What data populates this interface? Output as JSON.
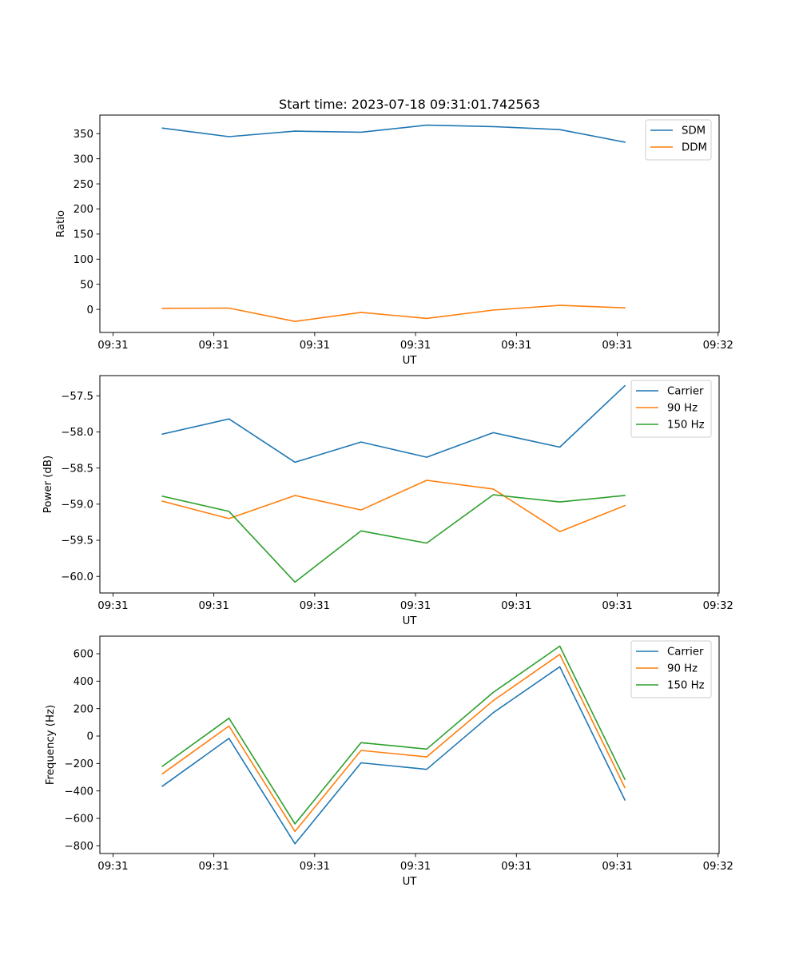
{
  "figure": {
    "title": "Start time: 2023-07-18 09:31:01.742563"
  },
  "chart_data": [
    {
      "type": "line",
      "title": "Start time: 2023-07-18 09:31:01.742563",
      "xlabel": "UT",
      "ylabel": "Ratio",
      "x_unit": "seconds after 09:31:00",
      "x": [
        4.9,
        11.5,
        18.05,
        24.6,
        31.1,
        37.7,
        44.3,
        50.75
      ],
      "xlim": [
        -1.3,
        60.1
      ],
      "xticks": [
        0,
        10,
        20,
        30,
        40,
        50,
        60
      ],
      "xtick_labels": [
        "09:31",
        "09:31",
        "09:31",
        "09:31",
        "09:31",
        "09:31",
        "09:32"
      ],
      "ylim": [
        -46,
        387
      ],
      "yticks": [
        0,
        50,
        100,
        150,
        200,
        250,
        300,
        350
      ],
      "ytick_labels": [
        "0",
        "50",
        "100",
        "150",
        "200",
        "250",
        "300",
        "350"
      ],
      "grid": false,
      "legend_position": "top-right",
      "series": [
        {
          "name": "SDM",
          "color": "#1f77b4",
          "values": [
            361,
            344,
            355,
            353,
            367,
            364,
            358,
            333
          ]
        },
        {
          "name": "DDM",
          "color": "#ff7f0e",
          "values": [
            2,
            2.5,
            -24,
            -6,
            -18,
            -1.5,
            8,
            3
          ]
        }
      ]
    },
    {
      "type": "line",
      "title": "",
      "xlabel": "UT",
      "ylabel": "Power (dB)",
      "x_unit": "seconds after 09:31:00",
      "x": [
        4.9,
        11.5,
        18.05,
        24.6,
        31.1,
        37.7,
        44.3,
        50.75
      ],
      "xlim": [
        -1.3,
        60.1
      ],
      "xticks": [
        0,
        10,
        20,
        30,
        40,
        50,
        60
      ],
      "xtick_labels": [
        "09:31",
        "09:31",
        "09:31",
        "09:31",
        "09:31",
        "09:31",
        "09:32"
      ],
      "ylim": [
        -60.23,
        -57.22
      ],
      "yticks": [
        -60.0,
        -59.5,
        -59.0,
        -58.5,
        -58.0,
        -57.5
      ],
      "ytick_labels": [
        "−60.0",
        "−59.5",
        "−59.0",
        "−58.5",
        "−58.0",
        "−57.5"
      ],
      "grid": false,
      "legend_position": "top-right",
      "series": [
        {
          "name": "Carrier",
          "color": "#1f77b4",
          "values": [
            -58.03,
            -57.82,
            -58.42,
            -58.14,
            -58.35,
            -58.01,
            -58.21,
            -57.36
          ]
        },
        {
          "name": "90 Hz",
          "color": "#ff7f0e",
          "values": [
            -58.96,
            -59.2,
            -58.88,
            -59.08,
            -58.67,
            -58.79,
            -59.38,
            -59.02
          ]
        },
        {
          "name": "150 Hz",
          "color": "#2ca02c",
          "values": [
            -58.89,
            -59.1,
            -60.08,
            -59.37,
            -59.54,
            -58.87,
            -58.97,
            -58.88
          ]
        }
      ]
    },
    {
      "type": "line",
      "title": "",
      "xlabel": "UT",
      "ylabel": "Frequency (Hz)",
      "x_unit": "seconds after 09:31:00",
      "x": [
        4.9,
        11.5,
        18.05,
        24.6,
        31.1,
        37.7,
        44.3,
        50.75
      ],
      "xlim": [
        -1.3,
        60.1
      ],
      "xticks": [
        0,
        10,
        20,
        30,
        40,
        50,
        60
      ],
      "xtick_labels": [
        "09:31",
        "09:31",
        "09:31",
        "09:31",
        "09:31",
        "09:31",
        "09:32"
      ],
      "ylim": [
        -856,
        728
      ],
      "yticks": [
        -800,
        -600,
        -400,
        -200,
        0,
        200,
        400,
        600
      ],
      "ytick_labels": [
        "−800",
        "−600",
        "−400",
        "−200",
        "0",
        "200",
        "400",
        "600"
      ],
      "grid": false,
      "legend_position": "top-right",
      "series": [
        {
          "name": "Carrier",
          "color": "#1f77b4",
          "values": [
            -365,
            -17,
            -785,
            -195,
            -243,
            170,
            505,
            -465
          ]
        },
        {
          "name": "90 Hz",
          "color": "#ff7f0e",
          "values": [
            -275,
            73,
            -695,
            -105,
            -152,
            258,
            595,
            -375
          ]
        },
        {
          "name": "150 Hz",
          "color": "#2ca02c",
          "values": [
            -220,
            130,
            -640,
            -48,
            -95,
            318,
            655,
            -315
          ]
        }
      ]
    }
  ]
}
